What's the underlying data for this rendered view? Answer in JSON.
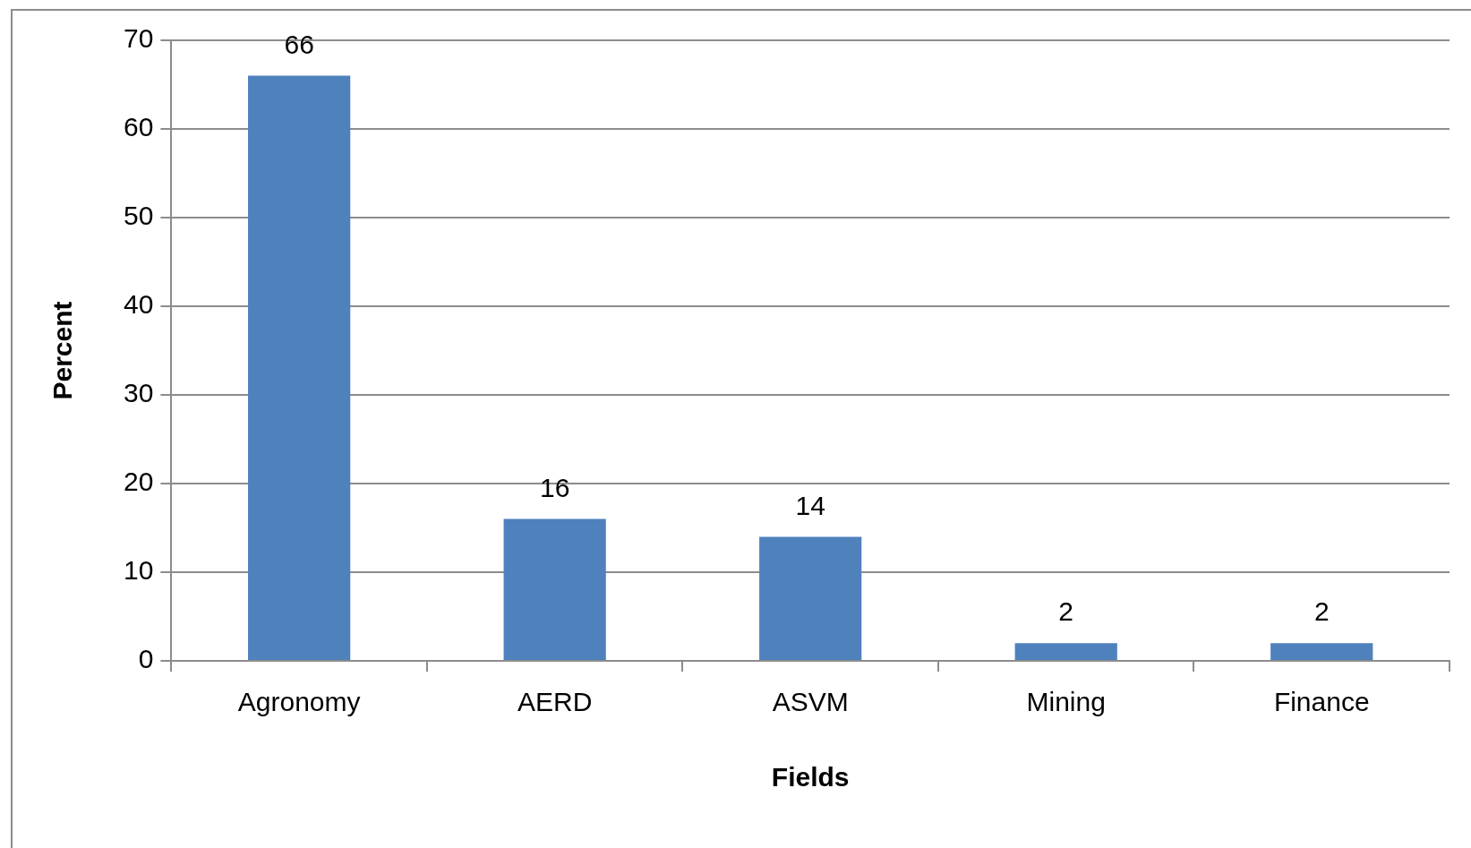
{
  "chart_data": {
    "type": "bar",
    "xlabel": "Fields",
    "ylabel": "Percent",
    "categories": [
      "Agronomy",
      "AERD",
      "ASVM",
      "Mining",
      "Finance"
    ],
    "values": [
      66,
      16,
      14,
      2,
      2
    ],
    "color": "#4f81bd",
    "ylim": [
      0,
      70
    ],
    "yticks": [
      0,
      10,
      20,
      30,
      40,
      50,
      60,
      70
    ],
    "grid": "y",
    "legend": false,
    "data_labels": true
  }
}
